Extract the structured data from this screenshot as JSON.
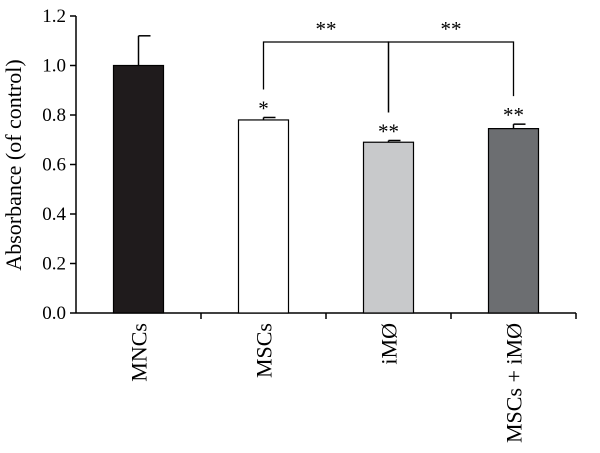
{
  "chart_data": {
    "type": "bar",
    "title": "",
    "xlabel": "",
    "ylabel": "Absorbance (of control)",
    "ylim": [
      0,
      1.2
    ],
    "yticks": [
      "0.0",
      "0.2",
      "0.4",
      "0.6",
      "0.8",
      "1.0",
      "1.2"
    ],
    "grid": false,
    "categories": [
      "MNCs",
      "MSCs",
      "iMØ",
      "MSCs + iMØ"
    ],
    "values": [
      1.0,
      0.78,
      0.69,
      0.745
    ],
    "errors": [
      0.12,
      0.01,
      0.007,
      0.018
    ],
    "colors": [
      "#1f1b1c",
      "#ffffff",
      "#c8c9cb",
      "#6c6e71"
    ],
    "bar_significance": [
      "",
      "*",
      "**",
      "**"
    ],
    "comparisons": [
      {
        "from": 1,
        "to": 2,
        "label": "**"
      },
      {
        "from": 2,
        "to": 3,
        "label": "**"
      }
    ]
  }
}
